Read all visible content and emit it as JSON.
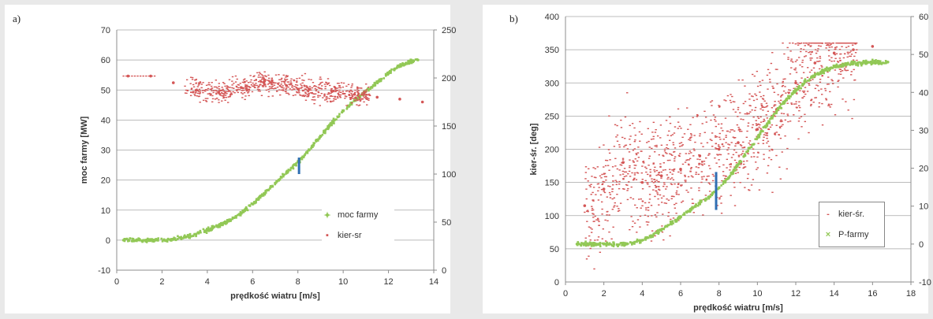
{
  "chart_data": [
    {
      "type": "scatter",
      "panel_label": "a)",
      "xlabel": "prędkość wiatru [m/s]",
      "ylabel": "moc farmy [MW]",
      "y2label": "",
      "xlim": [
        0,
        14
      ],
      "ylim": [
        -10,
        70
      ],
      "y2lim": [
        0,
        250
      ],
      "x_ticks": [
        "0",
        "2",
        "4",
        "6",
        "8",
        "10",
        "12",
        "14"
      ],
      "y_ticks": [
        "-10",
        "0",
        "10",
        "20",
        "30",
        "40",
        "50",
        "60",
        "70"
      ],
      "y2_ticks": [
        "0",
        "50",
        "100",
        "150",
        "200",
        "250"
      ],
      "grid": true,
      "legend_position": "right",
      "series": [
        {
          "name": "moc farmy",
          "color": "#92c856",
          "axis": "left",
          "x": [
            0.3,
            1.0,
            1.8,
            2.5,
            3.0,
            3.5,
            4.0,
            4.5,
            5.0,
            5.5,
            6.0,
            6.5,
            7.0,
            7.5,
            8.0,
            8.5,
            9.0,
            9.5,
            10.0,
            10.5,
            11.0,
            11.5,
            12.0,
            12.5,
            13.0,
            13.3
          ],
          "y": [
            0,
            0,
            0,
            0.3,
            1,
            2,
            3.3,
            4.8,
            6.8,
            9,
            12,
            15.3,
            19,
            22.5,
            26,
            30,
            34.5,
            39,
            43,
            46.5,
            49.5,
            52.5,
            55.5,
            58,
            59.5,
            60
          ]
        },
        {
          "name": "kier-sr",
          "color": "#d45656",
          "axis": "right",
          "x": [
            0.5,
            1.5,
            2.5,
            3.5,
            4.5,
            5.5,
            6.5,
            7.5,
            8.5,
            9.5,
            10.5,
            11.5,
            12.5,
            13.5
          ],
          "y": [
            202,
            202,
            195,
            187,
            185,
            190,
            195,
            192,
            188,
            186,
            183,
            180,
            178,
            175
          ]
        },
        {
          "name": "",
          "color": "#2f6fb3",
          "axis": "left",
          "x": [
            8.05,
            8.05
          ],
          "y": [
            22,
            27.5
          ]
        }
      ]
    },
    {
      "type": "scatter",
      "panel_label": "b)",
      "xlabel": "prędkość wiatru [m/s]",
      "ylabel": "kier-śr. [deg]",
      "y2label": "",
      "xlim": [
        0,
        18
      ],
      "ylim": [
        0,
        400
      ],
      "y2lim": [
        -10,
        60
      ],
      "x_ticks": [
        "0",
        "2",
        "4",
        "6",
        "8",
        "10",
        "12",
        "14",
        "16",
        "18"
      ],
      "y_ticks": [
        "0",
        "50",
        "100",
        "150",
        "200",
        "250",
        "300",
        "350",
        "400"
      ],
      "y2_ticks": [
        "-10",
        "0",
        "10",
        "20",
        "30",
        "40",
        "50",
        "60"
      ],
      "grid": true,
      "legend_position": "bottom-right",
      "series": [
        {
          "name": "kier-śr.",
          "color": "#d45656",
          "axis": "left",
          "x": [
            1,
            2,
            3,
            4,
            5,
            6,
            7,
            8,
            9,
            10,
            11,
            12,
            13,
            14,
            15,
            16
          ],
          "y": [
            115,
            140,
            180,
            150,
            160,
            170,
            190,
            200,
            210,
            230,
            260,
            300,
            330,
            345,
            350,
            355
          ]
        },
        {
          "name": "P-farmy",
          "color": "#92c856",
          "axis": "right",
          "x": [
            0.6,
            2,
            3,
            3.5,
            4,
            4.5,
            5,
            5.5,
            6,
            6.5,
            7,
            7.5,
            8,
            8.5,
            9,
            9.5,
            10,
            10.5,
            11,
            11.5,
            12,
            12.5,
            13,
            13.5,
            14,
            14.5,
            15,
            16,
            16.8
          ],
          "y": [
            0,
            0,
            0,
            0.3,
            1,
            2.2,
            3.8,
            5.5,
            7.2,
            9,
            10.8,
            12.5,
            14.8,
            17.5,
            21,
            24.5,
            28,
            31.5,
            35,
            38,
            40.5,
            42.8,
            44.5,
            45.8,
            46.8,
            47.3,
            47.6,
            47.9,
            48
          ]
        },
        {
          "name": "",
          "color": "#2f6fb3",
          "axis": "right",
          "x": [
            7.85,
            7.85
          ],
          "y": [
            9,
            19
          ]
        }
      ]
    }
  ]
}
